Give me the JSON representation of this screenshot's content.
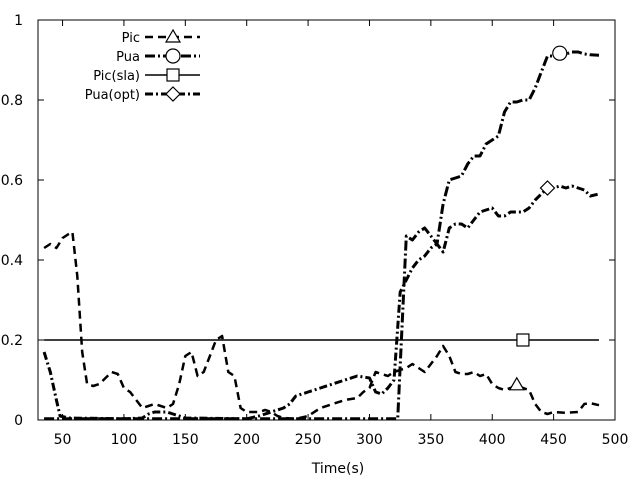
{
  "chart_data": {
    "type": "line",
    "xlabel": "Time(s)",
    "ylabel": "",
    "xlim": [
      30,
      500
    ],
    "ylim": [
      0,
      1
    ],
    "x_ticks": [
      50,
      100,
      150,
      200,
      250,
      300,
      350,
      400,
      450,
      500
    ],
    "y_ticks": [
      0,
      0.2,
      0.4,
      0.6,
      0.8,
      1
    ],
    "y_tick_labels": [
      "0",
      "0.2",
      "0.4",
      "0.6",
      "0.8",
      "1"
    ],
    "grid": false,
    "legend_position": "top-left",
    "series": [
      {
        "name": "Pic",
        "dash": "8,5",
        "stroke_width": 2.5,
        "marker": "triangle",
        "marker_at": [
          420,
          0.088
        ],
        "points": [
          [
            35,
            0.43
          ],
          [
            40,
            0.44
          ],
          [
            45,
            0.43
          ],
          [
            50,
            0.455
          ],
          [
            55,
            0.465
          ],
          [
            58,
            0.47
          ],
          [
            62,
            0.36
          ],
          [
            66,
            0.17
          ],
          [
            70,
            0.09
          ],
          [
            75,
            0.085
          ],
          [
            80,
            0.09
          ],
          [
            85,
            0.105
          ],
          [
            90,
            0.12
          ],
          [
            95,
            0.115
          ],
          [
            100,
            0.08
          ],
          [
            105,
            0.07
          ],
          [
            110,
            0.05
          ],
          [
            115,
            0.03
          ],
          [
            120,
            0.035
          ],
          [
            125,
            0.04
          ],
          [
            130,
            0.035
          ],
          [
            135,
            0.03
          ],
          [
            140,
            0.04
          ],
          [
            145,
            0.09
          ],
          [
            150,
            0.16
          ],
          [
            155,
            0.17
          ],
          [
            160,
            0.11
          ],
          [
            165,
            0.12
          ],
          [
            170,
            0.16
          ],
          [
            175,
            0.2
          ],
          [
            180,
            0.21
          ],
          [
            185,
            0.12
          ],
          [
            190,
            0.11
          ],
          [
            195,
            0.03
          ],
          [
            200,
            0.02
          ],
          [
            210,
            0.02
          ],
          [
            215,
            0.025
          ],
          [
            220,
            0.02
          ],
          [
            225,
            0.01
          ],
          [
            230,
            0.005
          ],
          [
            240,
            0.003
          ],
          [
            250,
            0.01
          ],
          [
            260,
            0.03
          ],
          [
            270,
            0.04
          ],
          [
            280,
            0.05
          ],
          [
            290,
            0.055
          ],
          [
            295,
            0.07
          ],
          [
            300,
            0.08
          ],
          [
            305,
            0.12
          ],
          [
            310,
            0.115
          ],
          [
            315,
            0.11
          ],
          [
            320,
            0.12
          ],
          [
            325,
            0.125
          ],
          [
            330,
            0.13
          ],
          [
            335,
            0.14
          ],
          [
            340,
            0.13
          ],
          [
            345,
            0.12
          ],
          [
            350,
            0.14
          ],
          [
            355,
            0.16
          ],
          [
            360,
            0.185
          ],
          [
            365,
            0.16
          ],
          [
            370,
            0.12
          ],
          [
            375,
            0.115
          ],
          [
            380,
            0.115
          ],
          [
            385,
            0.12
          ],
          [
            390,
            0.11
          ],
          [
            395,
            0.115
          ],
          [
            400,
            0.09
          ],
          [
            405,
            0.08
          ],
          [
            410,
            0.075
          ],
          [
            415,
            0.08
          ],
          [
            420,
            0.088
          ],
          [
            425,
            0.08
          ],
          [
            430,
            0.075
          ],
          [
            435,
            0.04
          ],
          [
            440,
            0.02
          ],
          [
            445,
            0.015
          ],
          [
            450,
            0.02
          ],
          [
            460,
            0.018
          ],
          [
            470,
            0.02
          ],
          [
            475,
            0.04
          ],
          [
            480,
            0.042
          ],
          [
            487,
            0.037
          ]
        ]
      },
      {
        "name": "Pua",
        "dash": "10,3,2,3",
        "stroke_width": 3,
        "marker": "circle",
        "marker_at": [
          455,
          0.917
        ],
        "points": [
          [
            35,
            0.003
          ],
          [
            50,
            0.003
          ],
          [
            100,
            0.003
          ],
          [
            150,
            0.003
          ],
          [
            200,
            0.003
          ],
          [
            250,
            0.003
          ],
          [
            300,
            0.003
          ],
          [
            320,
            0.003
          ],
          [
            323,
            0.003
          ],
          [
            326,
            0.2
          ],
          [
            330,
            0.46
          ],
          [
            335,
            0.45
          ],
          [
            340,
            0.47
          ],
          [
            345,
            0.48
          ],
          [
            350,
            0.46
          ],
          [
            355,
            0.44
          ],
          [
            360,
            0.54
          ],
          [
            365,
            0.6
          ],
          [
            370,
            0.605
          ],
          [
            375,
            0.61
          ],
          [
            380,
            0.64
          ],
          [
            385,
            0.66
          ],
          [
            390,
            0.66
          ],
          [
            395,
            0.69
          ],
          [
            400,
            0.7
          ],
          [
            405,
            0.71
          ],
          [
            410,
            0.77
          ],
          [
            415,
            0.795
          ],
          [
            420,
            0.795
          ],
          [
            425,
            0.8
          ],
          [
            430,
            0.8
          ],
          [
            435,
            0.83
          ],
          [
            440,
            0.87
          ],
          [
            445,
            0.91
          ],
          [
            450,
            0.91
          ],
          [
            455,
            0.917
          ],
          [
            460,
            0.915
          ],
          [
            465,
            0.92
          ],
          [
            470,
            0.92
          ],
          [
            475,
            0.915
          ],
          [
            480,
            0.913
          ],
          [
            487,
            0.912
          ]
        ]
      },
      {
        "name": "Pic(sla)",
        "dash": "",
        "stroke_width": 1.5,
        "marker": "square",
        "marker_at": [
          425,
          0.2
        ],
        "points": [
          [
            35,
            0.2
          ],
          [
            487,
            0.2
          ]
        ]
      },
      {
        "name": "Pua(opt)",
        "dash": "8,3,2,3",
        "stroke_width": 3,
        "marker": "diamond",
        "marker_at": [
          445,
          0.58
        ],
        "points": [
          [
            35,
            0.17
          ],
          [
            40,
            0.12
          ],
          [
            45,
            0.05
          ],
          [
            48,
            0.01
          ],
          [
            55,
            0.005
          ],
          [
            100,
            0.003
          ],
          [
            115,
            0.005
          ],
          [
            120,
            0.015
          ],
          [
            125,
            0.02
          ],
          [
            135,
            0.02
          ],
          [
            140,
            0.015
          ],
          [
            150,
            0.005
          ],
          [
            200,
            0.003
          ],
          [
            210,
            0.01
          ],
          [
            220,
            0.02
          ],
          [
            230,
            0.03
          ],
          [
            235,
            0.04
          ],
          [
            240,
            0.06
          ],
          [
            250,
            0.07
          ],
          [
            260,
            0.08
          ],
          [
            270,
            0.09
          ],
          [
            280,
            0.1
          ],
          [
            290,
            0.11
          ],
          [
            300,
            0.105
          ],
          [
            305,
            0.07
          ],
          [
            310,
            0.065
          ],
          [
            315,
            0.08
          ],
          [
            320,
            0.1
          ],
          [
            325,
            0.32
          ],
          [
            330,
            0.35
          ],
          [
            335,
            0.38
          ],
          [
            340,
            0.4
          ],
          [
            345,
            0.41
          ],
          [
            350,
            0.43
          ],
          [
            355,
            0.44
          ],
          [
            360,
            0.42
          ],
          [
            365,
            0.48
          ],
          [
            370,
            0.49
          ],
          [
            375,
            0.49
          ],
          [
            380,
            0.48
          ],
          [
            385,
            0.5
          ],
          [
            390,
            0.52
          ],
          [
            395,
            0.525
          ],
          [
            400,
            0.53
          ],
          [
            405,
            0.51
          ],
          [
            410,
            0.51
          ],
          [
            415,
            0.52
          ],
          [
            420,
            0.52
          ],
          [
            425,
            0.52
          ],
          [
            430,
            0.53
          ],
          [
            435,
            0.55
          ],
          [
            440,
            0.565
          ],
          [
            445,
            0.58
          ],
          [
            450,
            0.58
          ],
          [
            455,
            0.585
          ],
          [
            460,
            0.58
          ],
          [
            465,
            0.585
          ],
          [
            470,
            0.58
          ],
          [
            475,
            0.575
          ],
          [
            480,
            0.56
          ],
          [
            487,
            0.565
          ]
        ]
      }
    ]
  }
}
